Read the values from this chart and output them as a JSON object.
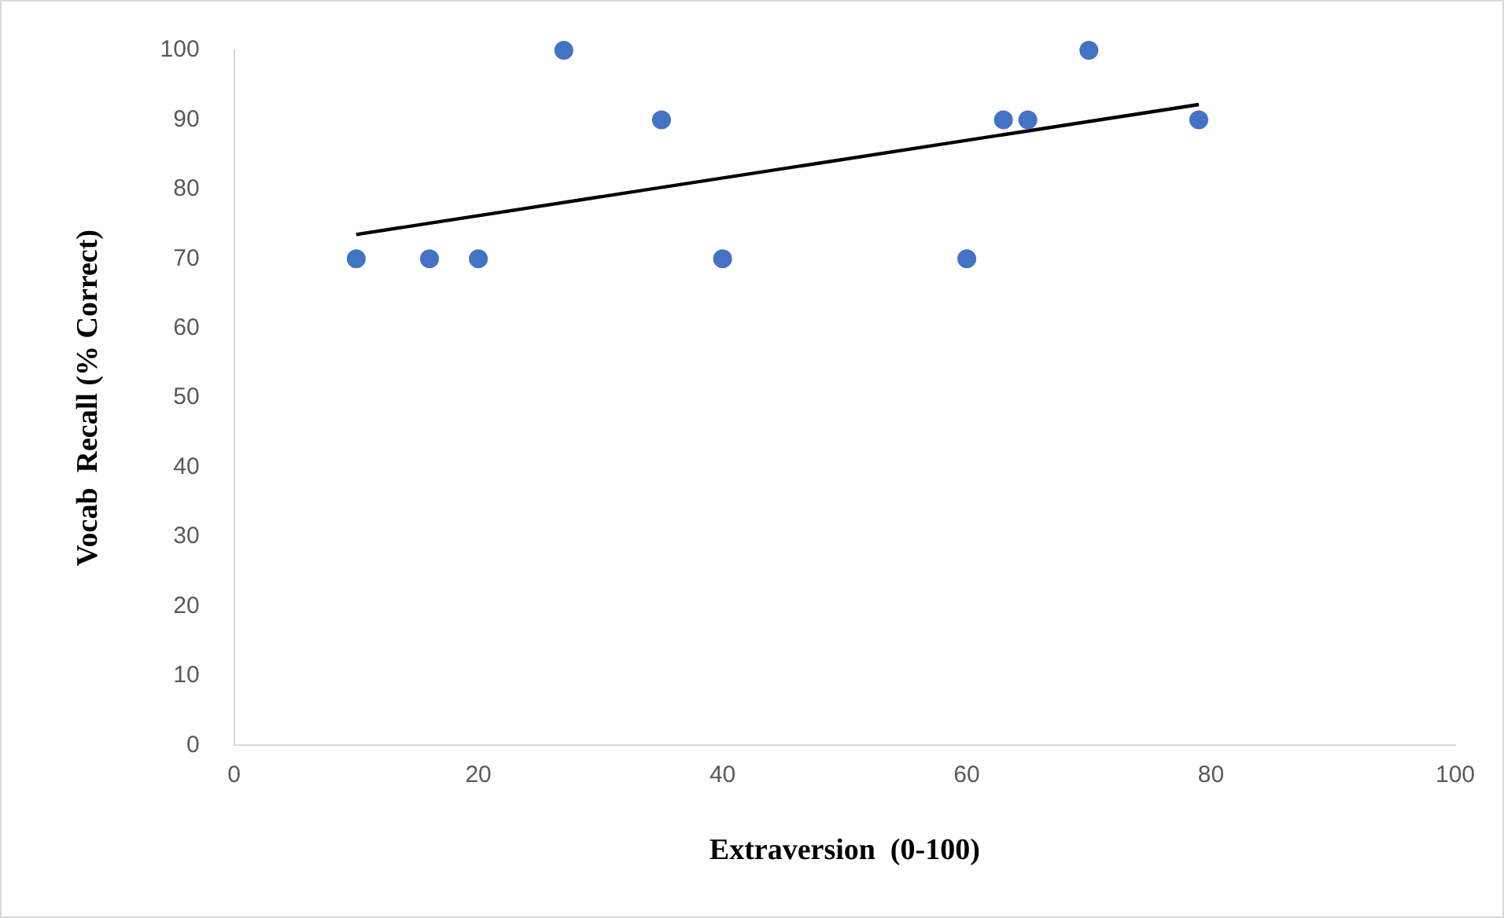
{
  "chart_data": {
    "type": "scatter",
    "xlabel": "Extraversion  (0-100)",
    "ylabel": "Vocab  Recall (% Correct)",
    "xlim": [
      0,
      100
    ],
    "xticks": [
      0,
      20,
      40,
      60,
      80,
      100
    ],
    "ylim": [
      0,
      100
    ],
    "yticks": [
      0,
      10,
      20,
      30,
      40,
      50,
      60,
      70,
      80,
      90,
      100
    ],
    "marker": "circle",
    "series": [
      {
        "color": "#4472c4",
        "x": [
          10,
          16,
          20,
          27,
          35,
          40,
          60,
          63,
          65,
          70,
          79
        ],
        "values": [
          70,
          70,
          70,
          100,
          90,
          70,
          70,
          90,
          90,
          100,
          90
        ]
      },
      {
        "type": "line",
        "marker": "none",
        "color": "#000000",
        "x": [
          10,
          79
        ],
        "values": [
          73.5,
          92.2
        ]
      }
    ]
  }
}
